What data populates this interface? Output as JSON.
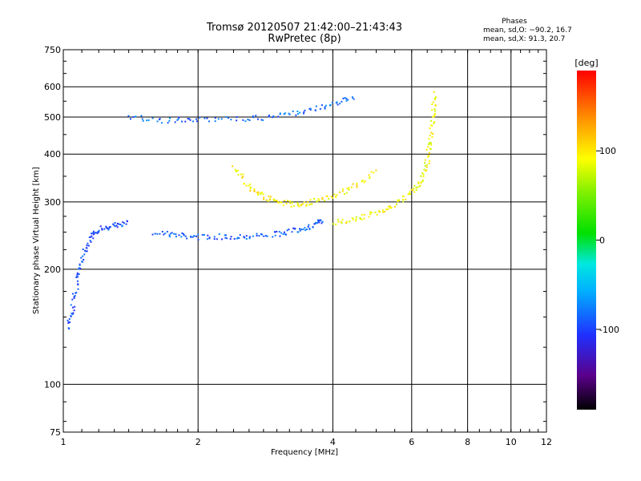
{
  "header": {
    "title_line1": "Tromsø 20120507 21:42:00–21:43:43",
    "title_line2": "RwPretec (8p)"
  },
  "phases": {
    "title": "Phases",
    "line_o": "mean, sd,O: −90.2, 16.7",
    "line_x": "mean, sd,X:  91.3, 20.7"
  },
  "colorbar": {
    "label": "[deg]",
    "ticks": [
      100,
      0,
      -100
    ],
    "range": [
      -190,
      190
    ]
  },
  "chart_data": {
    "type": "scatter",
    "xlabel": "Frequency [MHz]",
    "ylabel": "Stationary phase Virtual Height [km]",
    "x_scale": "log",
    "y_scale": "log",
    "xlim": [
      1,
      12
    ],
    "ylim": [
      75,
      750
    ],
    "x_ticks": [
      1,
      2,
      4,
      6,
      8,
      10,
      12
    ],
    "y_ticks": [
      75,
      100,
      200,
      300,
      400,
      500,
      600,
      750
    ],
    "grid": true,
    "color_meaning": "phase [deg]",
    "traces": [
      {
        "trace": "O-mode F-layer trace",
        "phase_deg": -90,
        "points": [
          [
            1.6,
            250
          ],
          [
            1.8,
            245
          ],
          [
            2.0,
            243
          ],
          [
            2.3,
            243
          ],
          [
            2.6,
            244
          ],
          [
            3.0,
            247
          ],
          [
            3.3,
            252
          ],
          [
            3.6,
            260
          ],
          [
            3.8,
            268
          ]
        ]
      },
      {
        "trace": "O-mode low-frequency trace",
        "phase_deg": -95,
        "points": [
          [
            1.02,
            140
          ],
          [
            1.05,
            160
          ],
          [
            1.08,
            190
          ],
          [
            1.1,
            215
          ],
          [
            1.15,
            240
          ],
          [
            1.2,
            255
          ],
          [
            1.3,
            260
          ],
          [
            1.4,
            265
          ]
        ]
      },
      {
        "trace": "X-mode F-layer trace",
        "phase_deg": 90,
        "points": [
          [
            4.0,
            265
          ],
          [
            4.5,
            270
          ],
          [
            5.0,
            280
          ],
          [
            5.5,
            295
          ],
          [
            6.0,
            315
          ],
          [
            6.3,
            340
          ],
          [
            6.5,
            380
          ],
          [
            6.6,
            430
          ],
          [
            6.7,
            500
          ],
          [
            6.75,
            580
          ]
        ]
      },
      {
        "trace": "X-mode multi-hop echo",
        "phase_deg": 95,
        "points": [
          [
            2.4,
            370
          ],
          [
            2.6,
            330
          ],
          [
            2.8,
            310
          ],
          [
            3.0,
            300
          ],
          [
            3.3,
            295
          ],
          [
            3.6,
            300
          ],
          [
            4.0,
            310
          ],
          [
            4.5,
            330
          ],
          [
            5.0,
            360
          ]
        ]
      },
      {
        "trace": "O-mode multi-hop echoes",
        "phase_deg": -85,
        "points": [
          [
            1.4,
            500
          ],
          [
            1.7,
            490
          ],
          [
            2.0,
            490
          ],
          [
            2.5,
            495
          ],
          [
            3.0,
            500
          ],
          [
            3.5,
            520
          ],
          [
            4.0,
            540
          ],
          [
            4.5,
            570
          ]
        ]
      }
    ]
  }
}
